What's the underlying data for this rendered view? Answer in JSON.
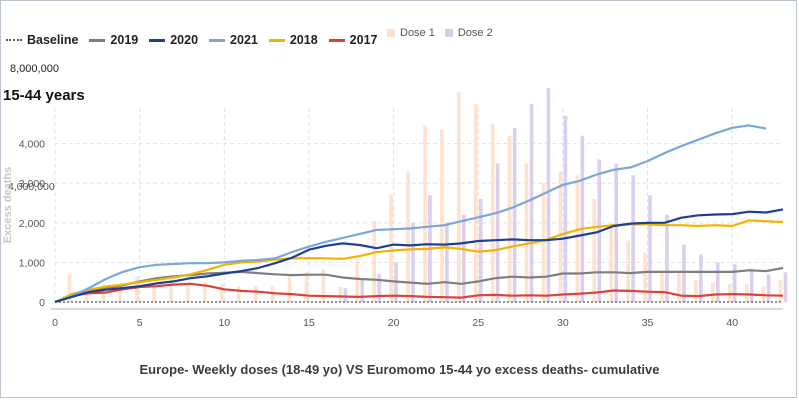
{
  "chart_data": {
    "type": "line",
    "title": "Europe- Weekly doses (18-49 yo) VS Euromomo 15-44 yo excess deaths- cumulative",
    "subtitle": "15-44 years",
    "left_axis_top_label": "8,000,000",
    "left_axis_mid_label": "4,000,000",
    "ylabel": "Excess deaths",
    "xlabel": "",
    "xlim": [
      0,
      43
    ],
    "ylim": [
      0,
      4900
    ],
    "x_ticks": [
      "0",
      "5",
      "10",
      "15",
      "20",
      "25",
      "30",
      "35",
      "40"
    ],
    "y_ticks": [
      "0",
      "1,000",
      "2,000",
      "3,000",
      "4,000"
    ],
    "grid": true,
    "legend_position": "top-left",
    "x": [
      0,
      1,
      2,
      3,
      4,
      5,
      6,
      7,
      8,
      9,
      10,
      11,
      12,
      13,
      14,
      15,
      16,
      17,
      18,
      19,
      20,
      21,
      22,
      23,
      24,
      25,
      26,
      27,
      28,
      29,
      30,
      31,
      32,
      33,
      34,
      35,
      36,
      37,
      38,
      39,
      40,
      41,
      42,
      43
    ],
    "series": [
      {
        "name": "2019",
        "color": "#7f7f7f",
        "values": [
          0,
          170,
          280,
          350,
          420,
          520,
          600,
          650,
          680,
          720,
          740,
          760,
          730,
          700,
          680,
          690,
          690,
          620,
          580,
          560,
          520,
          490,
          460,
          500,
          460,
          520,
          600,
          640,
          620,
          640,
          720,
          720,
          750,
          750,
          730,
          760,
          760,
          760,
          760,
          760,
          760,
          800,
          780,
          860
        ]
      },
      {
        "name": "2020",
        "color": "#1f3f95",
        "values": [
          0,
          130,
          250,
          310,
          350,
          400,
          470,
          520,
          600,
          650,
          720,
          780,
          860,
          980,
          1120,
          1320,
          1420,
          1480,
          1440,
          1360,
          1450,
          1430,
          1460,
          1450,
          1480,
          1540,
          1560,
          1580,
          1560,
          1560,
          1600,
          1680,
          1760,
          1920,
          1980,
          2000,
          2000,
          2130,
          2190,
          2210,
          2220,
          2280,
          2260,
          2340
        ]
      },
      {
        "name": "2021",
        "color": "#7aa6dc",
        "values": [
          0,
          150,
          350,
          580,
          760,
          880,
          940,
          960,
          980,
          980,
          1000,
          1040,
          1060,
          1100,
          1260,
          1400,
          1520,
          1620,
          1720,
          1820,
          1840,
          1860,
          1900,
          1940,
          2040,
          2140,
          2240,
          2380,
          2560,
          2760,
          2960,
          3060,
          3220,
          3340,
          3400,
          3560,
          3760,
          3940,
          4100,
          4260,
          4400,
          4460,
          4380,
          null
        ]
      },
      {
        "name": "2018",
        "color": "#f0b400",
        "values": [
          0,
          200,
          310,
          390,
          440,
          500,
          560,
          620,
          700,
          810,
          940,
          1000,
          1020,
          1070,
          1100,
          1110,
          1100,
          1090,
          1160,
          1260,
          1300,
          1330,
          1340,
          1380,
          1340,
          1270,
          1310,
          1400,
          1480,
          1560,
          1720,
          1840,
          1900,
          1940,
          1960,
          1960,
          1940,
          1940,
          1920,
          1940,
          1920,
          2060,
          2040,
          2020
        ]
      },
      {
        "name": "2017",
        "color": "#d9433b",
        "values": [
          0,
          160,
          220,
          240,
          320,
          380,
          400,
          440,
          460,
          410,
          320,
          280,
          260,
          220,
          200,
          160,
          150,
          140,
          130,
          150,
          160,
          150,
          130,
          120,
          110,
          170,
          180,
          160,
          170,
          160,
          190,
          210,
          240,
          290,
          280,
          260,
          250,
          160,
          150,
          190,
          200,
          190,
          170,
          160
        ]
      }
    ],
    "baseline": {
      "name": "Baseline",
      "color": "#555555",
      "style": "dotted"
    },
    "dose_series": [
      {
        "name": "Dose 1",
        "color": "#fde0cb",
        "values": [
          0,
          700,
          250,
          450,
          300,
          650,
          500,
          500,
          480,
          500,
          450,
          400,
          400,
          400,
          650,
          750,
          820,
          380,
          1050,
          2050,
          2700,
          3300,
          4450,
          4350,
          5300,
          5000,
          4500,
          4200,
          3500,
          3000,
          3300,
          3200,
          2600,
          2000,
          1550,
          1250,
          800,
          800,
          550,
          500,
          450,
          450,
          400,
          550
        ]
      },
      {
        "name": "Dose 2",
        "color": "#d8ccee",
        "values": [
          0,
          0,
          0,
          0,
          0,
          0,
          0,
          0,
          0,
          0,
          0,
          0,
          0,
          0,
          0,
          0,
          0,
          350,
          600,
          700,
          1000,
          2000,
          2700,
          2000,
          2200,
          2600,
          3500,
          4400,
          5000,
          5400,
          4700,
          4200,
          3600,
          3500,
          3200,
          2700,
          2200,
          1450,
          1200,
          1000,
          950,
          850,
          700,
          750
        ]
      }
    ]
  },
  "legend": {
    "baseline_label": "Baseline",
    "items": [
      "2019",
      "2020",
      "2021",
      "2018",
      "2017"
    ],
    "dose_items": [
      "Dose 1",
      "Dose 2"
    ]
  }
}
